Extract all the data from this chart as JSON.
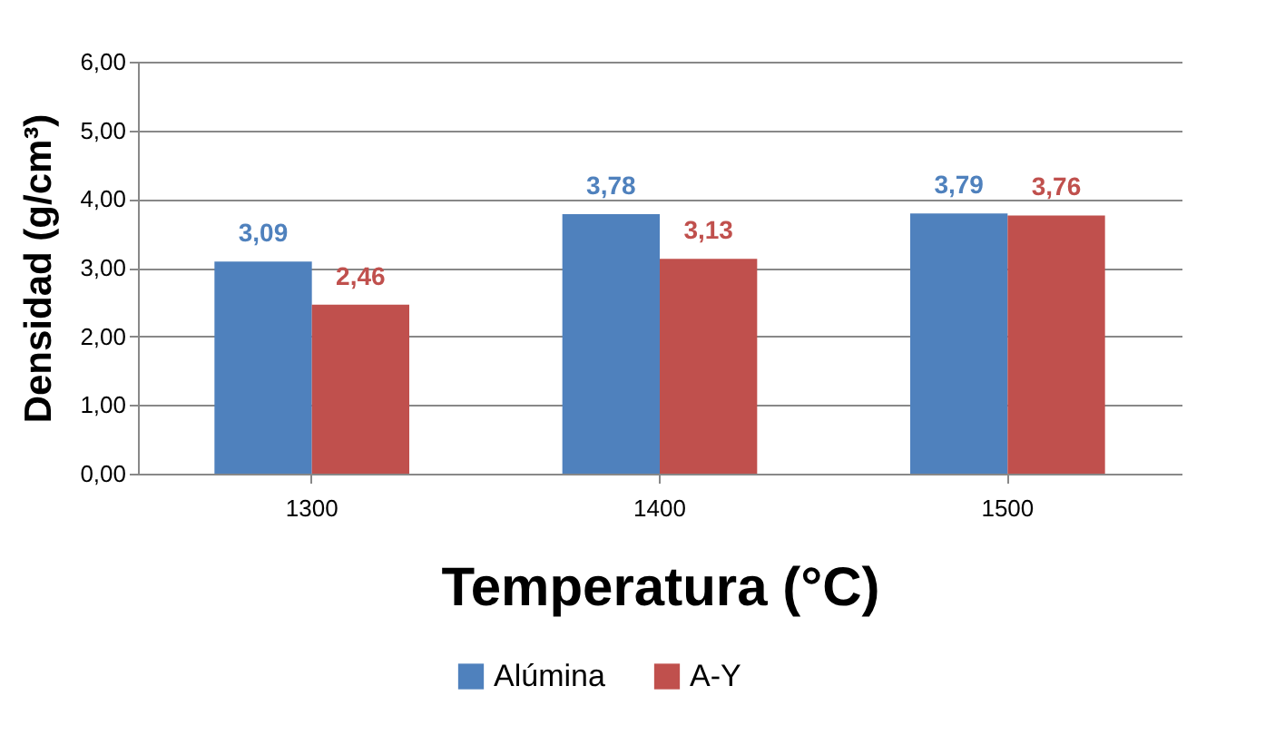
{
  "chart_data": {
    "type": "bar",
    "xlabel": "Temperatura (°C)",
    "ylabel": "Densidad (g/cm³)",
    "categories": [
      "1300",
      "1400",
      "1500"
    ],
    "series": [
      {
        "name": "Alúmina",
        "color": "#4f81bd",
        "values": [
          3.09,
          3.78,
          3.79
        ],
        "value_labels": [
          "3,09",
          "3,78",
          "3,79"
        ]
      },
      {
        "name": "A-Y",
        "color": "#c0504d",
        "values": [
          2.46,
          3.13,
          3.76
        ],
        "value_labels": [
          "2,46",
          "3,13",
          "3,76"
        ]
      }
    ],
    "ylim": [
      0,
      6
    ],
    "yticks": [
      {
        "value": 0,
        "label": "0,00"
      },
      {
        "value": 1,
        "label": "1,00"
      },
      {
        "value": 2,
        "label": "2,00"
      },
      {
        "value": 3,
        "label": "3,00"
      },
      {
        "value": 4,
        "label": "4,00"
      },
      {
        "value": 5,
        "label": "5,00"
      },
      {
        "value": 6,
        "label": "6,00"
      }
    ],
    "grid": "y",
    "legend": "bottom"
  }
}
